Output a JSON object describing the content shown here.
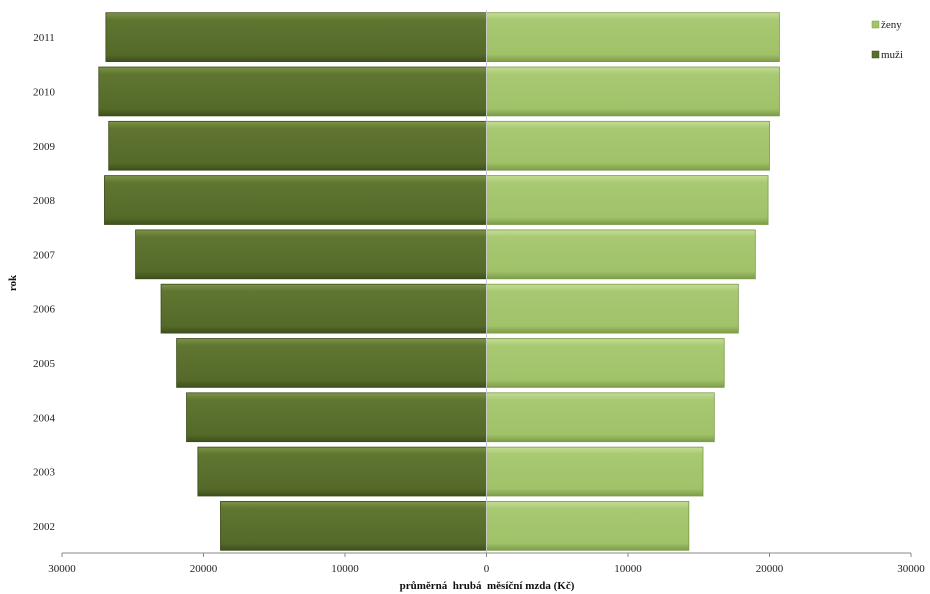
{
  "chart_data": {
    "type": "bar",
    "orientation": "horizontal",
    "layout": "population-pyramid",
    "categories": [
      "2002",
      "2003",
      "2004",
      "2005",
      "2006",
      "2007",
      "2008",
      "2009",
      "2010",
      "2011"
    ],
    "series": [
      {
        "name": "muži",
        "side": "left",
        "color": "#5a6e2e",
        "values": [
          18800,
          20400,
          21200,
          21900,
          23000,
          24800,
          27000,
          26700,
          27400,
          26900
        ]
      },
      {
        "name": "ženy",
        "side": "right",
        "color": "#a3c46b",
        "values": [
          14300,
          15300,
          16100,
          16800,
          17800,
          19000,
          19900,
          20000,
          20700,
          20700
        ]
      }
    ],
    "xlabel": "průměrná  hrubá  měsíční mzda (Kč)",
    "ylabel": "rok",
    "xlim": [
      -30000,
      30000
    ],
    "x_ticks": [
      -30000,
      -20000,
      -10000,
      0,
      10000,
      20000,
      30000
    ],
    "x_tick_labels": [
      "30000",
      "20000",
      "10000",
      "0",
      "10000",
      "20000",
      "30000"
    ],
    "legend": {
      "position": "top-right",
      "order": [
        "ženy",
        "muži"
      ]
    },
    "grid": false
  }
}
